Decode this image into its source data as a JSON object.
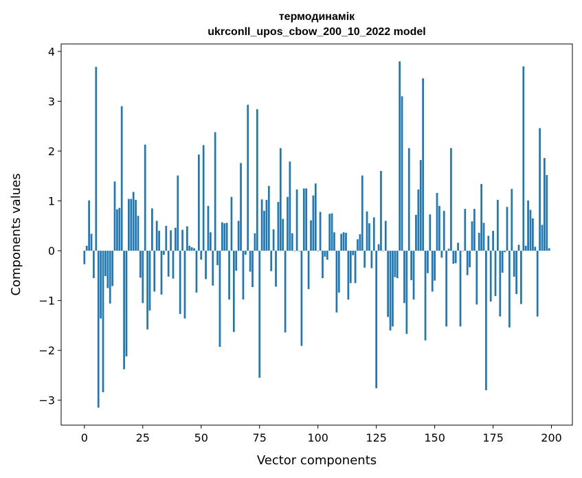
{
  "chart_data": {
    "type": "bar",
    "title_line1": "термодинамік",
    "title_line2": "ukrconll_upos_cbow_200_10_2022 model",
    "xlabel": "Vector components",
    "ylabel": "Components values",
    "xlim": [
      -9.95,
      208.95
    ],
    "ylim": [
      -3.5,
      4.15
    ],
    "xticks": [
      0,
      25,
      50,
      75,
      100,
      125,
      150,
      175,
      200
    ],
    "yticks": [
      -3,
      -2,
      -1,
      0,
      1,
      2,
      3,
      4
    ],
    "grid": false,
    "color": "#1f77b4",
    "values": [
      -0.27,
      0.1,
      1.01,
      0.34,
      -0.55,
      3.69,
      -3.15,
      -1.36,
      -2.84,
      -0.51,
      -0.75,
      -1.06,
      -0.71,
      1.39,
      0.83,
      0.86,
      2.9,
      -2.38,
      -2.12,
      1.04,
      1.04,
      1.18,
      1.02,
      0.7,
      -0.54,
      -1.05,
      2.13,
      -1.58,
      -1.2,
      0.85,
      -0.82,
      0.6,
      0.4,
      -0.88,
      -0.08,
      0.5,
      -0.52,
      0.41,
      -0.56,
      0.46,
      1.51,
      -1.27,
      0.42,
      -1.36,
      0.49,
      0.1,
      0.07,
      0.05,
      -0.84,
      1.93,
      -0.18,
      2.12,
      -0.57,
      0.9,
      0.37,
      -0.7,
      2.38,
      -0.29,
      -1.93,
      0.57,
      0.55,
      0.56,
      -0.98,
      1.08,
      -1.63,
      -0.4,
      0.6,
      1.76,
      -0.98,
      -0.08,
      2.93,
      -0.42,
      -0.73,
      0.35,
      2.84,
      -2.55,
      1.03,
      0.8,
      1.02,
      1.3,
      -0.41,
      0.43,
      -0.72,
      0.98,
      2.06,
      0.64,
      -1.64,
      1.08,
      1.79,
      0.35,
      0.0,
      1.23,
      0.0,
      -1.91,
      1.25,
      1.25,
      -0.77,
      0.61,
      1.11,
      1.35,
      0.0,
      0.78,
      -0.55,
      -0.12,
      -0.18,
      0.74,
      0.75,
      0.37,
      -1.24,
      -0.84,
      0.34,
      0.37,
      0.36,
      -0.98,
      -0.65,
      -0.09,
      -0.65,
      0.23,
      0.33,
      1.51,
      -0.34,
      0.79,
      0.55,
      -0.35,
      0.67,
      -2.76,
      0.13,
      1.6,
      0.0,
      0.6,
      -1.33,
      -1.6,
      -1.52,
      -0.53,
      -0.55,
      3.8,
      3.1,
      -1.05,
      -1.67,
      2.06,
      -0.59,
      -0.98,
      0.72,
      1.23,
      1.82,
      3.46,
      -1.8,
      -0.45,
      0.73,
      -0.82,
      -0.6,
      1.16,
      0.9,
      -0.14,
      0.8,
      -1.52,
      0.04,
      2.06,
      -0.26,
      -0.25,
      0.16,
      -1.52,
      0.0,
      0.84,
      -0.49,
      -0.33,
      0.59,
      0.84,
      -1.08,
      0.36,
      1.34,
      0.56,
      -2.8,
      0.3,
      -1.02,
      0.4,
      -0.91,
      1.02,
      -1.32,
      -0.44,
      -0.03,
      0.88,
      -1.54,
      1.24,
      -0.52,
      -0.87,
      0.12,
      -1.07,
      3.7,
      0.1,
      1.01,
      0.82,
      0.65,
      0.08,
      -1.32,
      2.46,
      0.52,
      1.86,
      1.52,
      0.05
    ]
  }
}
